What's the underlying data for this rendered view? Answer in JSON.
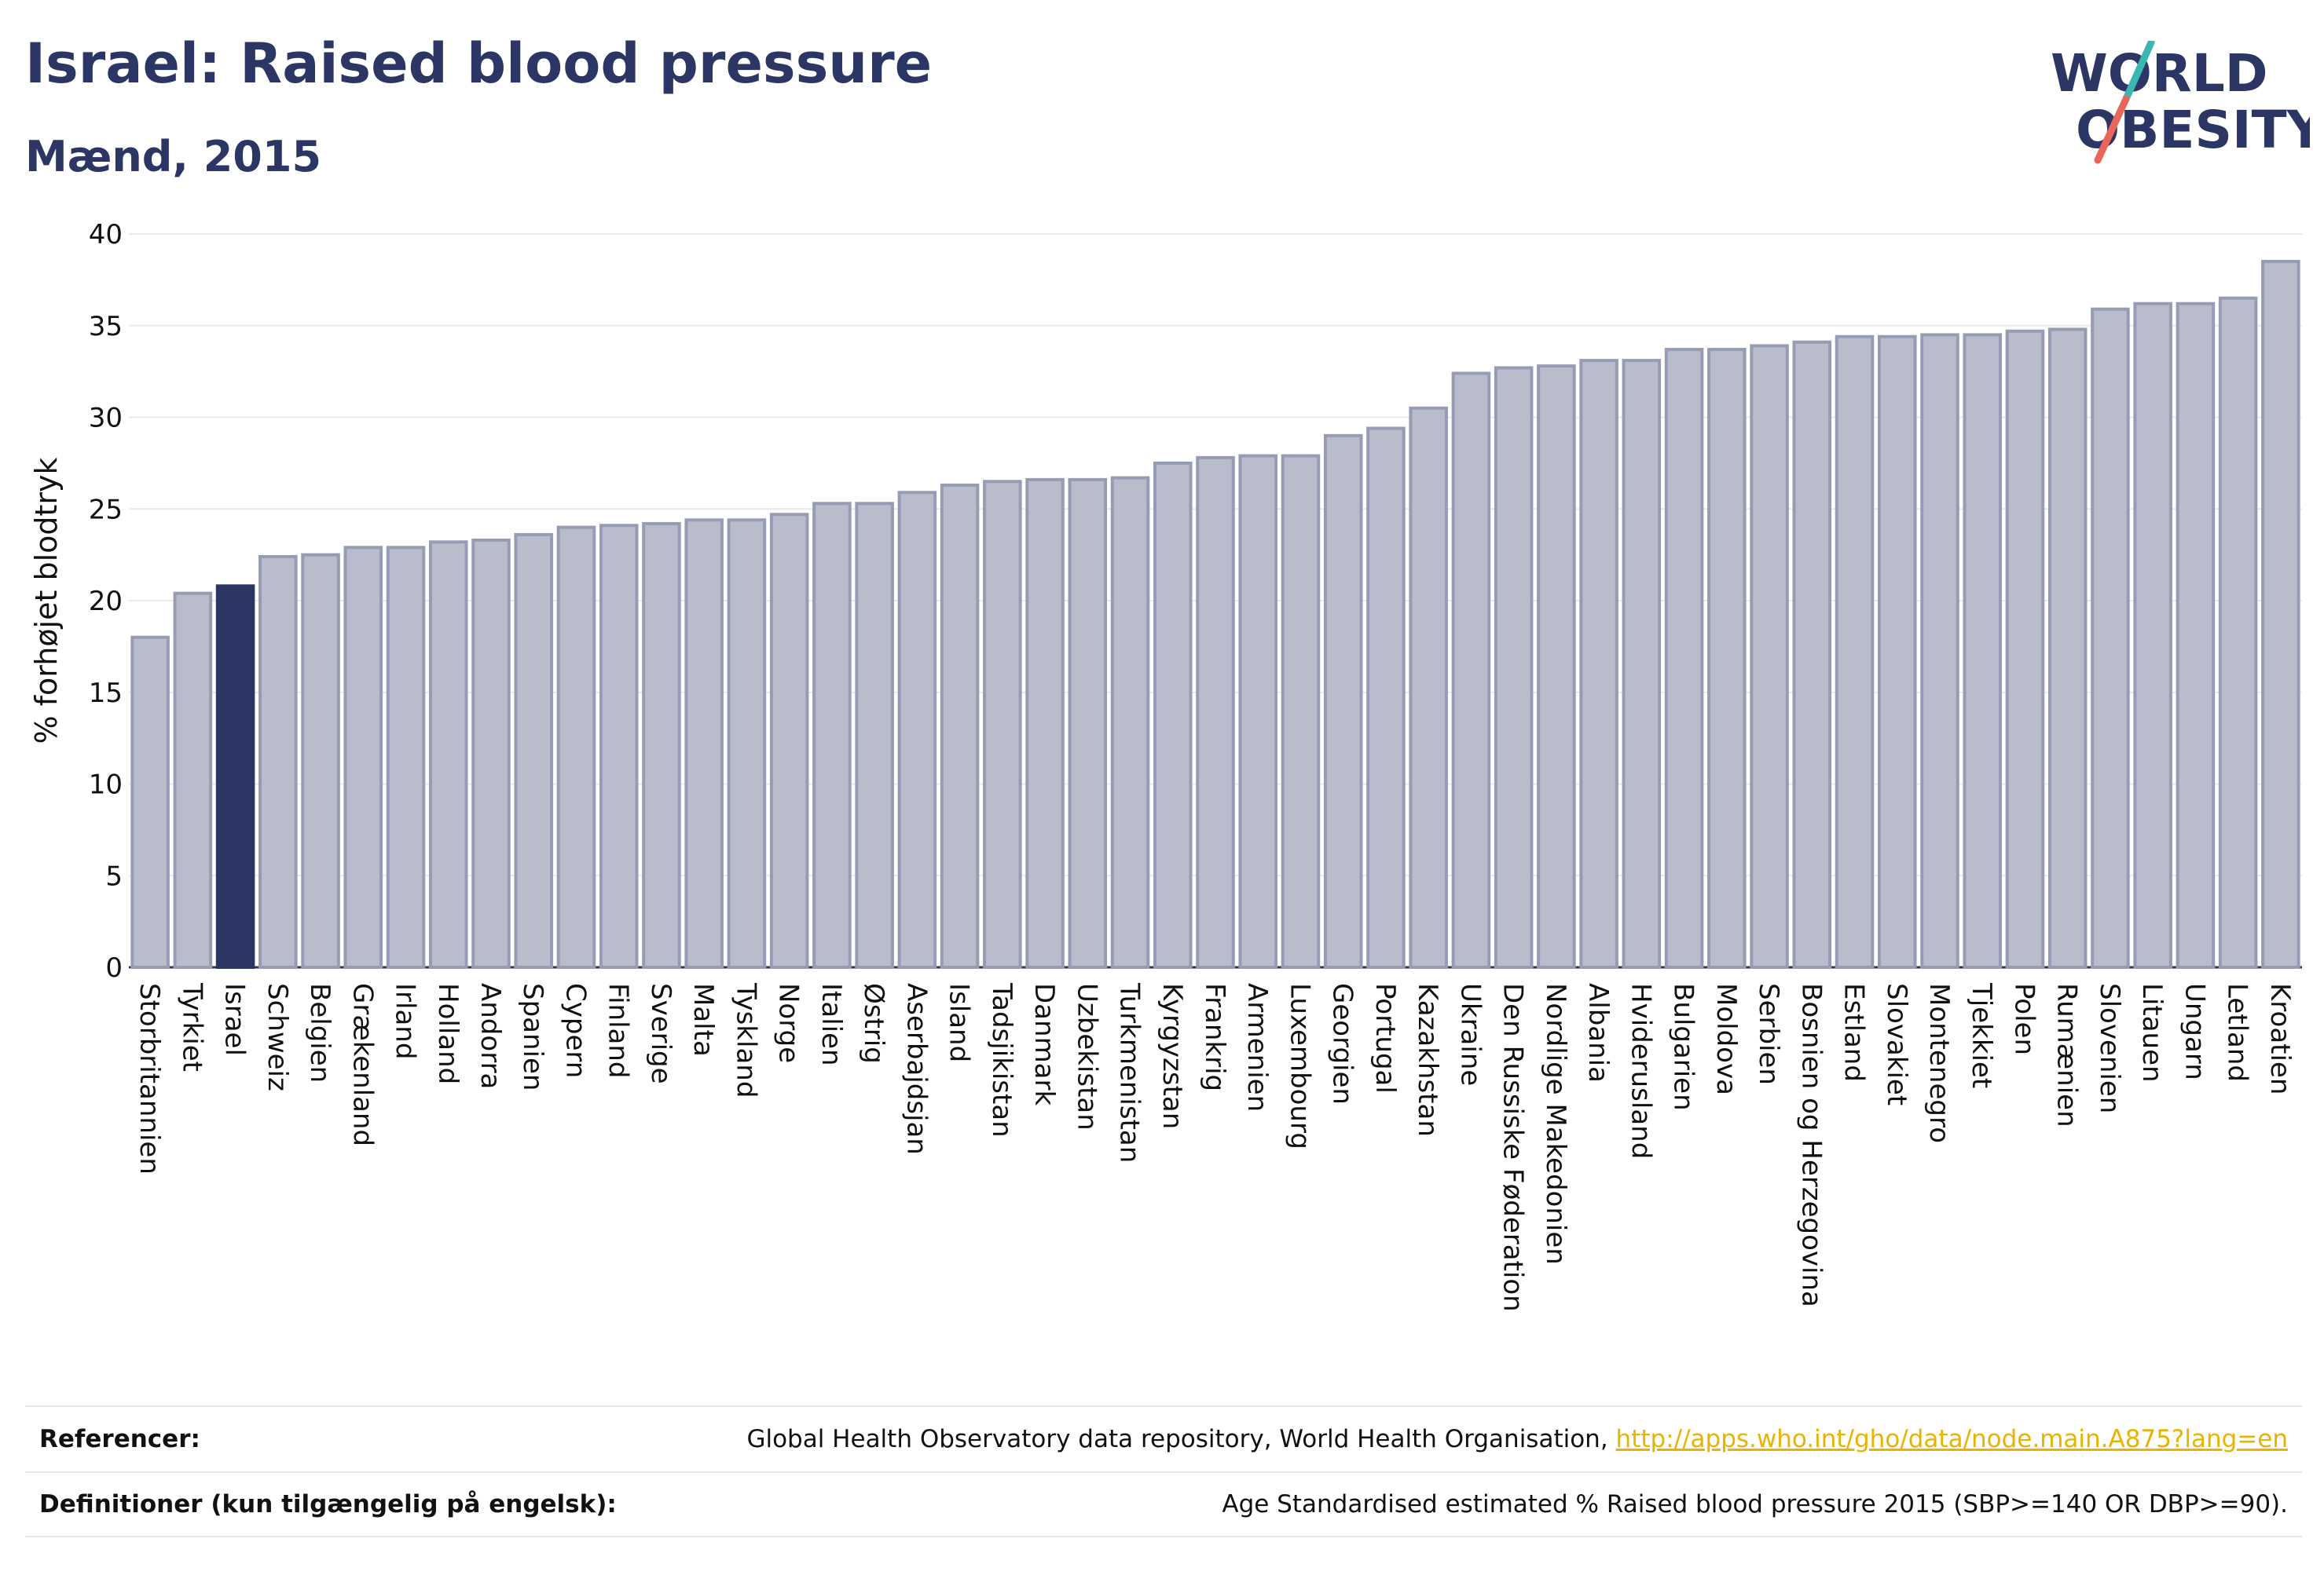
{
  "header": {
    "title": "Israel: Raised blood pressure",
    "subtitle": "Mænd, 2015",
    "logo_line1": "WORLD",
    "logo_line2": "OBESITY"
  },
  "colors": {
    "bar": "#b9bccb",
    "bar_stroke": "#979cb5",
    "highlight": "#2c3664",
    "grid": "#e9e9ee",
    "logo_slash_teal": "#3bb6b0",
    "logo_slash_coral": "#e8675a",
    "link": "#e8b400"
  },
  "chart_data": {
    "type": "bar",
    "title": "Israel: Raised blood pressure",
    "subtitle": "Mænd, 2015",
    "xlabel": "",
    "ylabel": "% forhøjet blodtryk",
    "ylim": [
      0,
      40
    ],
    "yticks": [
      0,
      5,
      10,
      15,
      20,
      25,
      30,
      35,
      40
    ],
    "grid": true,
    "highlight": "Israel",
    "categories": [
      "Storbritannien",
      "Tyrkiet",
      "Israel",
      "Schweiz",
      "Belgien",
      "Grækenland",
      "Irland",
      "Holland",
      "Andorra",
      "Spanien",
      "Cypern",
      "Finland",
      "Sverige",
      "Malta",
      "Tyskland",
      "Norge",
      "Italien",
      "Østrig",
      "Aserbajdsjan",
      "Island",
      "Tadsjikistan",
      "Danmark",
      "Uzbekistan",
      "Turkmenistan",
      "Kyrgyzstan",
      "Frankrig",
      "Armenien",
      "Luxembourg",
      "Georgien",
      "Portugal",
      "Kazakhstan",
      "Ukraine",
      "Den Russiske Føderation",
      "Nordlige Makedonien",
      "Albania",
      "Hviderusland",
      "Bulgarien",
      "Moldova",
      "Serbien",
      "Bosnien og Herzegovina",
      "Estland",
      "Slovakiet",
      "Montenegro",
      "Tjekkiet",
      "Polen",
      "Rumænien",
      "Slovenien",
      "Litauen",
      "Ungarn",
      "Letland",
      "Kroatien"
    ],
    "values": [
      18.0,
      20.4,
      20.8,
      22.4,
      22.5,
      22.9,
      22.9,
      23.2,
      23.3,
      23.6,
      24.0,
      24.1,
      24.2,
      24.4,
      24.4,
      24.7,
      25.3,
      25.3,
      25.9,
      26.3,
      26.5,
      26.6,
      26.6,
      26.7,
      27.5,
      27.8,
      27.9,
      27.9,
      29.0,
      29.4,
      30.5,
      32.4,
      32.7,
      32.8,
      33.1,
      33.1,
      33.7,
      33.7,
      33.9,
      34.1,
      34.4,
      34.4,
      34.5,
      34.5,
      34.7,
      34.8,
      35.9,
      36.2,
      36.2,
      36.5,
      38.5
    ]
  },
  "footer": {
    "ref_label": "Referencer:",
    "ref_text": "Global Health Observatory data repository, World Health Organisation, ",
    "ref_link": "http://apps.who.int/gho/data/node.main.A875?lang=en",
    "def_label": "Definitioner (kun tilgængelig på engelsk):",
    "def_text": "Age Standardised estimated % Raised blood pressure 2015 (SBP>=140 OR DBP>=90)."
  }
}
